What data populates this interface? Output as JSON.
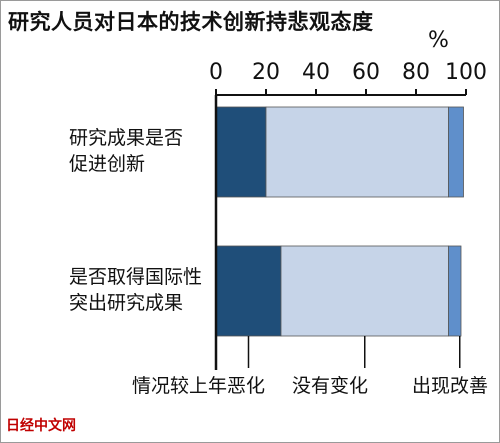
{
  "title": "研究人员对日本的技术创新持悲观态度",
  "unit": "%",
  "watermark": "日经中文网",
  "colors": {
    "worse": "#1f4e79",
    "nochange": "#c6d4e8",
    "improved": "#5f8fcb",
    "axis": "#111111"
  },
  "chart_data": {
    "type": "bar",
    "orientation": "horizontal",
    "stacked": true,
    "xlim": [
      0,
      100
    ],
    "xticks": [
      "0",
      "20",
      "40",
      "60",
      "80",
      "100"
    ],
    "categories": [
      [
        "研究成果是否",
        "促进创新"
      ],
      [
        "是否取得国际性",
        "突出研究成果"
      ]
    ],
    "series": [
      {
        "name": "情况较上年恶化",
        "values": [
          20,
          26
        ]
      },
      {
        "name": "没有变化",
        "values": [
          73,
          67
        ]
      },
      {
        "name": "出现改善",
        "values": [
          6,
          5
        ]
      }
    ]
  }
}
